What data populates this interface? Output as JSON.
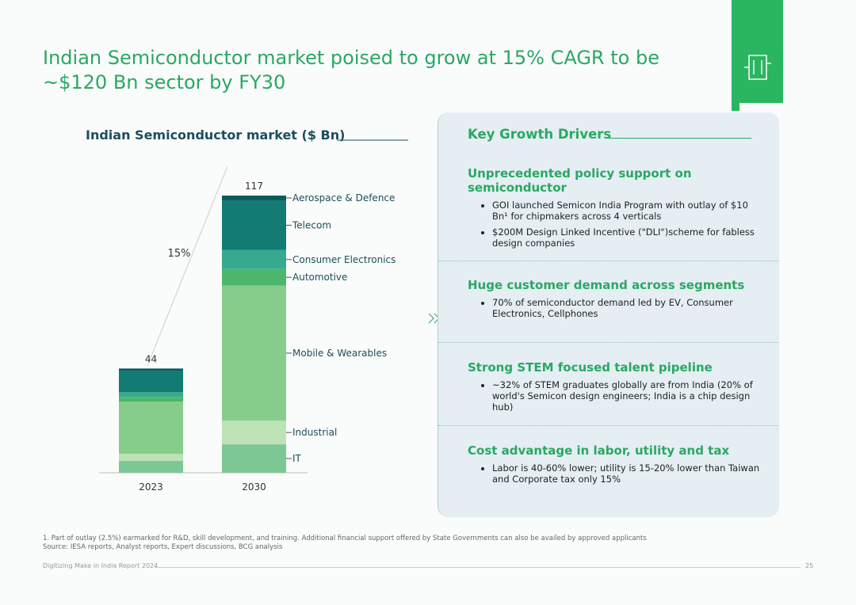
{
  "header": {
    "title": "Indian Semiconductor market poised to grow at 15% CAGR to be ~$120 Bn sector by FY30"
  },
  "chart_data": {
    "type": "bar",
    "stacked": true,
    "title": "Indian Semiconductor market ($ Bn)",
    "categories": [
      "2023",
      "2030"
    ],
    "series": [
      {
        "name": "IT",
        "color": "#7dc795",
        "values": [
          5,
          12
        ]
      },
      {
        "name": "Industrial",
        "color": "#bde2b5",
        "values": [
          3,
          10
        ]
      },
      {
        "name": "Mobile & Wearables",
        "color": "#86cd8b",
        "values": [
          22,
          57
        ]
      },
      {
        "name": "Automotive",
        "color": "#4cb66c",
        "values": [
          2,
          7
        ]
      },
      {
        "name": "Consumer Electronics",
        "color": "#36aa8e",
        "values": [
          2,
          8
        ]
      },
      {
        "name": "Telecom",
        "color": "#137b74",
        "values": [
          9,
          21
        ]
      },
      {
        "name": "Aerospace & Defence",
        "color": "#0b5a5c",
        "values": [
          1,
          2
        ]
      }
    ],
    "totals": [
      44,
      117
    ],
    "annotation": "15%"
  },
  "drivers": {
    "title": "Key Growth Drivers",
    "items": [
      {
        "heading": "Unprecedented policy support on semiconductor",
        "bullets": [
          "GOI launched Semicon India Program with outlay of $10 Bn¹ for chipmakers across 4 verticals",
          "$200M Design Linked Incentive (\"DLI\")scheme for fabless design companies"
        ]
      },
      {
        "heading": "Huge customer demand across segments",
        "bullets": [
          "70% of semiconductor demand led by EV, Consumer Electronics, Cellphones"
        ]
      },
      {
        "heading": "Strong STEM focused talent pipeline",
        "bullets": [
          "~32% of STEM graduates globally are from India (20% of world's Semicon design engineers; India is a chip design hub)"
        ]
      },
      {
        "heading": "Cost advantage in labor, utility and tax",
        "bullets": [
          "Labor is 40-60% lower; utility is 15-20% lower than Taiwan and Corporate tax only 15%"
        ]
      }
    ]
  },
  "footnotes": [
    "1. Part of outlay (2.5%) earmarked for R&D, skill development, and training. Additional financial support offered by State Governments can also be availed by approved applicants",
    "Source: IESA reports, Analyst reports, Expert discussions, BCG analysis"
  ],
  "footer": {
    "report": "Digitizing Make in India Report 2024",
    "page": "25"
  }
}
